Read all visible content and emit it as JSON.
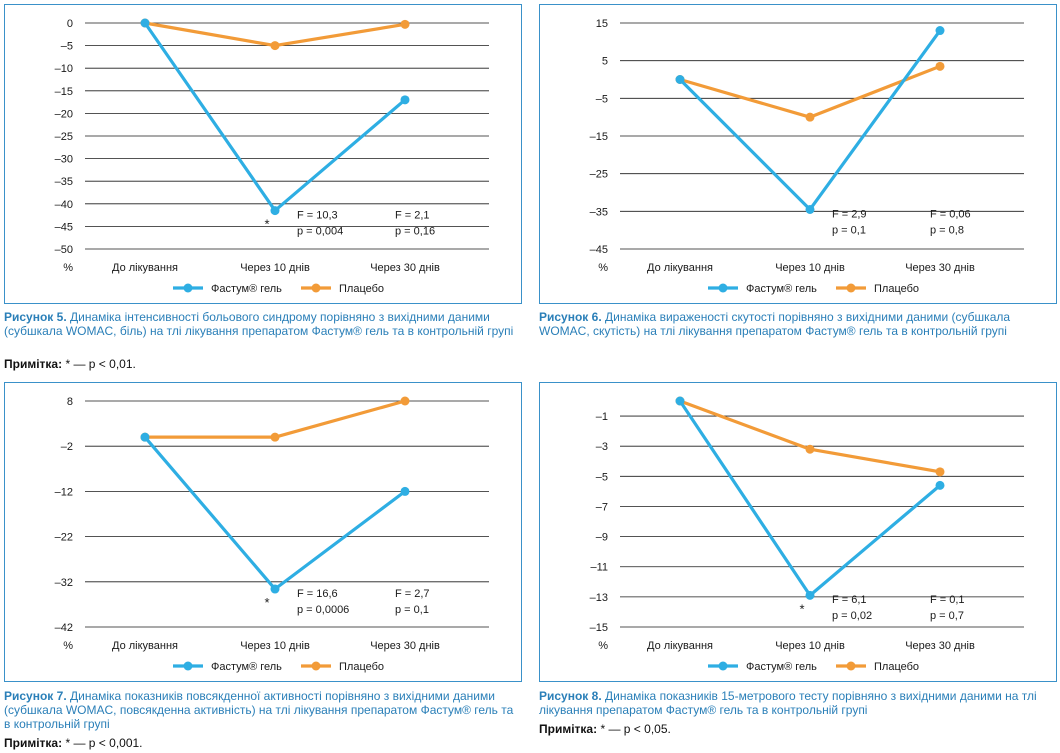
{
  "colors": {
    "fastum": "#2eaee3",
    "placebo": "#f29b38",
    "frame": "#3a91c9",
    "caption": "#2a7fb8"
  },
  "chart_data": [
    {
      "id": "fig5",
      "type": "line",
      "categories": [
        "До лікування",
        "Через 10 днів",
        "Через 30 днів"
      ],
      "series": [
        {
          "name": "Фастум® гель",
          "values": [
            0,
            -41.5,
            -17
          ]
        },
        {
          "name": "Плацебо",
          "values": [
            0,
            -5,
            -0.3
          ]
        }
      ],
      "ylim": [
        -50,
        0
      ],
      "yticks": [
        0,
        -5,
        -10,
        -15,
        -20,
        -25,
        -30,
        -35,
        -40,
        -45,
        -50
      ],
      "yunit": "%",
      "legend_position": "bottom",
      "star": "*",
      "stats": [
        {
          "f": "F = 10,3",
          "p": "p = 0,004"
        },
        {
          "f": "F = 2,1",
          "p": "p = 0,16"
        }
      ]
    },
    {
      "id": "fig6",
      "type": "line",
      "categories": [
        "До лікування",
        "Через 10 днів",
        "Через 30 днів"
      ],
      "series": [
        {
          "name": "Фастум® гель",
          "values": [
            0,
            -34.5,
            13
          ]
        },
        {
          "name": "Плацебо",
          "values": [
            0,
            -10,
            3.5
          ]
        }
      ],
      "ylim": [
        -45,
        15
      ],
      "yticks": [
        15,
        5,
        -5,
        -15,
        -25,
        -35,
        -45
      ],
      "yunit": "%",
      "legend_position": "bottom",
      "star": "",
      "stats": [
        {
          "f": "F = 2,9",
          "p": "p = 0,1"
        },
        {
          "f": "F = 0,06",
          "p": "p = 0,8"
        }
      ]
    },
    {
      "id": "fig7",
      "type": "line",
      "categories": [
        "До лікування",
        "Через 10 днів",
        "Через 30 днів"
      ],
      "series": [
        {
          "name": "Фастум® гель",
          "values": [
            0,
            -33.6,
            -12
          ]
        },
        {
          "name": "Плацебо",
          "values": [
            0,
            0,
            8
          ]
        }
      ],
      "ylim": [
        -42,
        8
      ],
      "yticks": [
        8,
        -2,
        -12,
        -22,
        -32,
        -42
      ],
      "yunit": "%",
      "legend_position": "bottom",
      "star": "*",
      "stats": [
        {
          "f": "F = 16,6",
          "p": "p = 0,0006"
        },
        {
          "f": "F = 2,7",
          "p": "p = 0,1"
        }
      ]
    },
    {
      "id": "fig8",
      "type": "line",
      "categories": [
        "До лікування",
        "Через 10 днів",
        "Через 30 днів"
      ],
      "series": [
        {
          "name": "Фастум® гель",
          "values": [
            0,
            -12.9,
            -5.6
          ]
        },
        {
          "name": "Плацебо",
          "values": [
            0,
            -3.2,
            -4.7
          ]
        }
      ],
      "ylim": [
        -15,
        0
      ],
      "yticks": [
        -1,
        -3,
        -5,
        -7,
        -9,
        -11,
        -13,
        -15
      ],
      "yunit": "%",
      "legend_position": "bottom",
      "star": "*",
      "stats": [
        {
          "f": "F = 6,1",
          "p": "p = 0,02"
        },
        {
          "f": "F = 0,1",
          "p": "p = 0,7"
        }
      ]
    }
  ],
  "captions": {
    "fig5": {
      "label": "Рисунок 5.",
      "text": "Динаміка інтенсивності больового синдрому порівняно з вихідними даними (субшкала WOMAC, біль) на тлі лікування препаратом Фастум® гель та в контрольній групі",
      "note_label": "Примітка:",
      "note_text": "* — p < 0,01."
    },
    "fig6": {
      "label": "Рисунок 6.",
      "text": "Динаміка вираженості скутості порівняно з вихідними даними (субшкала WOMAC, скутість) на тлі лікування препаратом Фастум® гель та в контрольній групі",
      "note_label": "",
      "note_text": ""
    },
    "fig7": {
      "label": "Рисунок 7.",
      "text": "Динаміка показників повсякденної активності порівняно з вихідними даними (субшкала WOMAC, повсякденна активність) на тлі лікування препаратом Фастум® гель та в контрольній групі",
      "note_label": "Примітка:",
      "note_text": "* — p < 0,001."
    },
    "fig8": {
      "label": "Рисунок 8.",
      "text": "Динаміка показників 15-метрового тесту порівняно з вихідними даними на тлі лікування препаратом Фастум® гель та в контрольній групі",
      "note_label": "Примітка:",
      "note_text": "* — p < 0,05."
    }
  }
}
